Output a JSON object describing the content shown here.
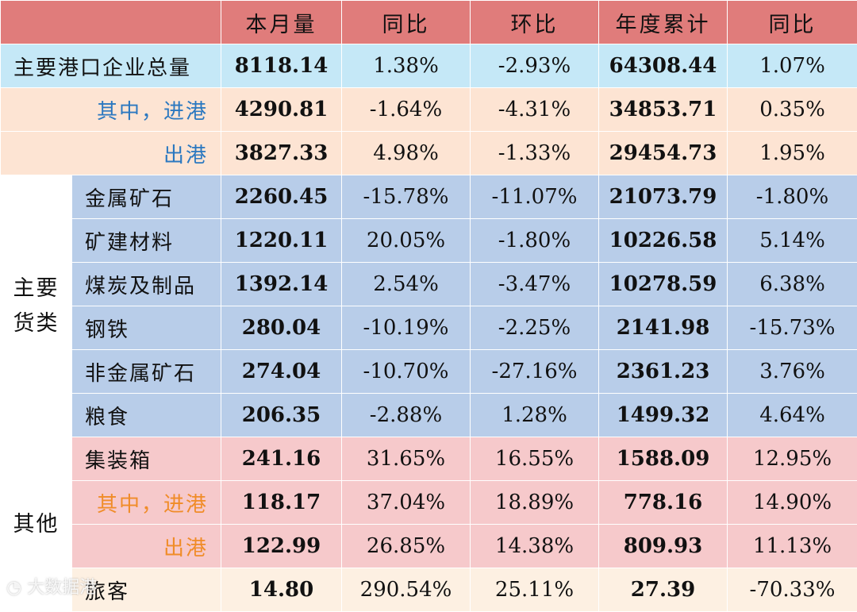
{
  "headers": [
    "本月量",
    "同比",
    "环比",
    "年度累计",
    "同比"
  ],
  "groups": {
    "cargo": "主要\n货类",
    "other": "其他"
  },
  "rows": [
    {
      "label": "主要港口企业总量",
      "values": [
        "8118.14",
        "1.38%",
        "-2.93%",
        "64308.44",
        "1.07%"
      ]
    },
    {
      "label": "其中，进港",
      "values": [
        "4290.81",
        "-1.64%",
        "-4.31%",
        "34853.71",
        "0.35%"
      ]
    },
    {
      "label": "出港",
      "values": [
        "3827.33",
        "4.98%",
        "-1.33%",
        "29454.73",
        "1.95%"
      ]
    },
    {
      "label": "金属矿石",
      "values": [
        "2260.45",
        "-15.78%",
        "-11.07%",
        "21073.79",
        "-1.80%"
      ]
    },
    {
      "label": "矿建材料",
      "values": [
        "1220.11",
        "20.05%",
        "-1.80%",
        "10226.58",
        "5.14%"
      ]
    },
    {
      "label": "煤炭及制品",
      "values": [
        "1392.14",
        "2.54%",
        "-3.47%",
        "10278.59",
        "6.38%"
      ]
    },
    {
      "label": "钢铁",
      "values": [
        "280.04",
        "-10.19%",
        "-2.25%",
        "2141.98",
        "-15.73%"
      ]
    },
    {
      "label": "非金属矿石",
      "values": [
        "274.04",
        "-10.70%",
        "-27.16%",
        "2361.23",
        "3.76%"
      ]
    },
    {
      "label": "粮食",
      "values": [
        "206.35",
        "-2.88%",
        "1.28%",
        "1499.32",
        "4.64%"
      ]
    },
    {
      "label": "集装箱",
      "values": [
        "241.16",
        "31.65%",
        "16.55%",
        "1588.09",
        "12.95%"
      ]
    },
    {
      "label": "其中，进港",
      "values": [
        "118.17",
        "37.04%",
        "18.89%",
        "778.16",
        "14.90%"
      ]
    },
    {
      "label": "出港",
      "values": [
        "122.99",
        "26.85%",
        "14.38%",
        "809.93",
        "11.13%"
      ]
    },
    {
      "label": "旅客",
      "values": [
        "14.80",
        "290.54%",
        "25.11%",
        "27.39",
        "-70.33%"
      ]
    }
  ],
  "watermark": "大数据港",
  "colors": {
    "header": "#e07c7b",
    "total_row": "#c5e8f7",
    "inout_rows": "#fde4d3",
    "cargo_rows": "#b8cde9",
    "other_rows": "#f6c9cb",
    "passenger_row": "#fdf0e2",
    "blue_label": "#2b78c0",
    "orange_label": "#f08c28"
  }
}
